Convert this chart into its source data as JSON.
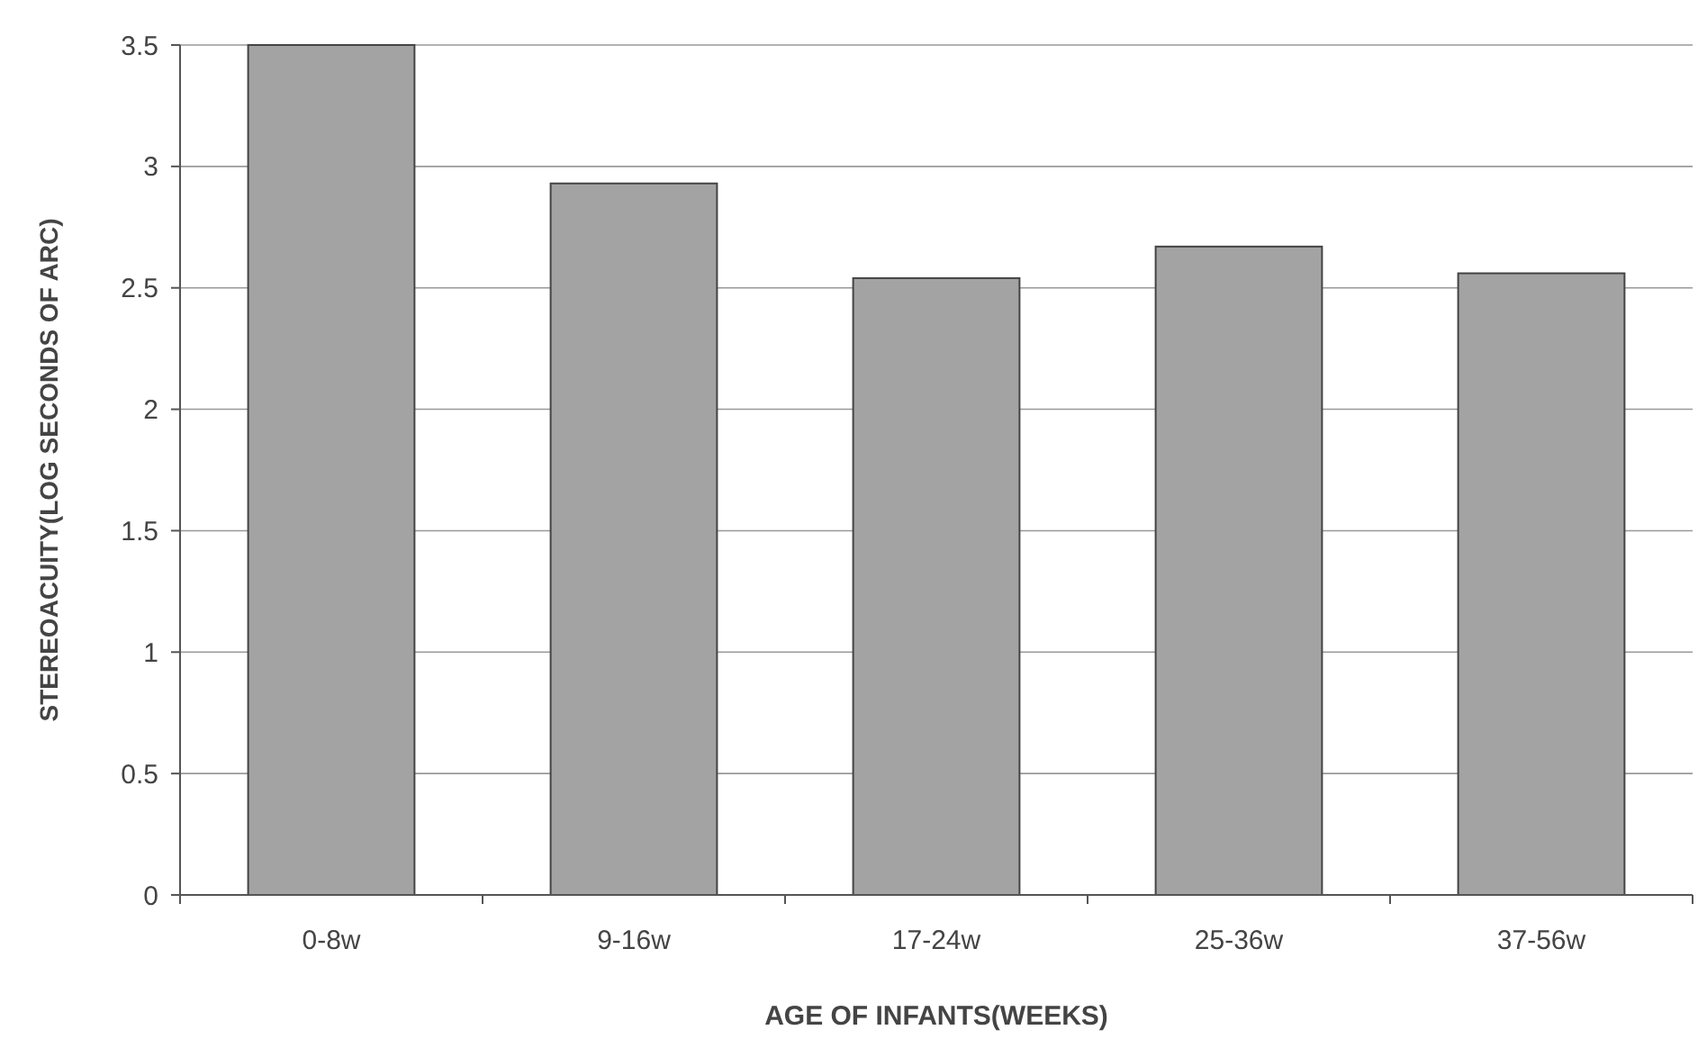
{
  "chart_data": {
    "type": "bar",
    "xlabel": "AGE OF INFANTS(WEEKS)",
    "ylabel": "STEREOACUITY(LOG SECONDS OF ARC)",
    "categories": [
      "0-8w",
      "9-16w",
      "17-24w",
      "25-36w",
      "37-56w"
    ],
    "values": [
      3.5,
      2.93,
      2.54,
      2.67,
      2.56
    ],
    "color": "#a3a3a3",
    "ylim": [
      0,
      3.5
    ],
    "yticks": [
      0,
      0.5,
      1,
      1.5,
      2,
      2.5,
      3,
      3.5
    ],
    "grid": "y"
  }
}
